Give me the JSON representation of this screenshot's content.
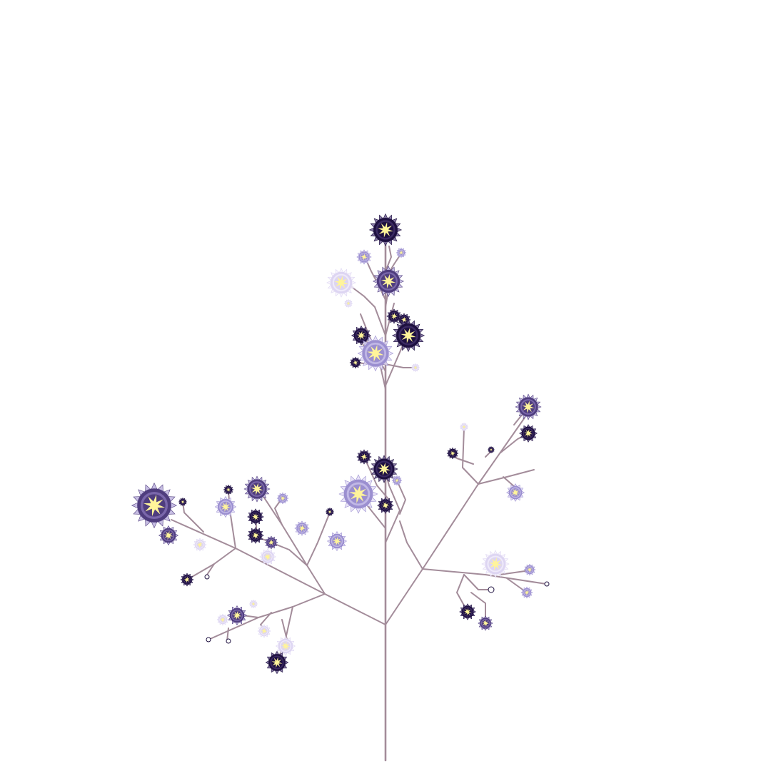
{
  "scene": {
    "subject": "flowering-branch-illustration",
    "background_color": "#ffffff",
    "stem_color": "#a38c9a",
    "center_color": "#fff49a",
    "flower_palettes": {
      "dark": {
        "petal": "#1e1040",
        "ring": "#3b2a63",
        "edge": "#6a5a8e"
      },
      "mid": {
        "petal": "#4f3d7e",
        "ring": "#7a67ab",
        "edge": "#b9aedc"
      },
      "light": {
        "petal": "#9b8fd0",
        "ring": "#c1b8e6",
        "edge": "#e2dcf5"
      },
      "pale": {
        "petal": "#ddd5f2",
        "ring": "#efeafa",
        "edge": "#f6f3fc"
      }
    }
  }
}
